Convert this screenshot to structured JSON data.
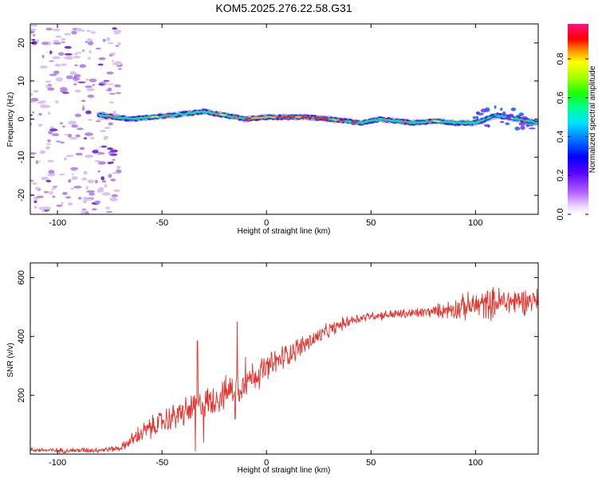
{
  "title": "KOM5.2025.276.22.58.G31",
  "colors": {
    "snr_line": "#e8302a",
    "noise": "#b58ae8",
    "noise_light": "#d9c2f4",
    "noise_dark": "#7a35d8"
  },
  "chart_data": [
    {
      "type": "heatmap",
      "xlabel": "Height of straight line (km)",
      "ylabel": "Frequency (Hz)",
      "xlim": [
        -113,
        130
      ],
      "ylim": [
        -25,
        25
      ],
      "xticks": [
        -100,
        -50,
        0,
        50,
        100
      ],
      "yticks": [
        -20,
        -10,
        0,
        10,
        20
      ],
      "ridge": {
        "start_km": -80,
        "end_km": 130,
        "center_freq": [
          [
            -80,
            1
          ],
          [
            -65,
            0
          ],
          [
            -45,
            1
          ],
          [
            -30,
            2
          ],
          [
            -20,
            1
          ],
          [
            -10,
            0
          ],
          [
            0,
            0.5
          ],
          [
            20,
            0.5
          ],
          [
            30,
            0
          ],
          [
            45,
            -1
          ],
          [
            55,
            0
          ],
          [
            70,
            -1
          ],
          [
            80,
            -0.5
          ],
          [
            90,
            -1
          ],
          [
            100,
            -1
          ],
          [
            105,
            0
          ],
          [
            110,
            1
          ],
          [
            120,
            0
          ],
          [
            130,
            -1
          ]
        ],
        "peak_amplitude_zone_km": [
          -10,
          45
        ]
      },
      "noise_region_km": [
        -113,
        -70
      ],
      "colorbar": {
        "label": "Normalized spectral amplitude",
        "ticks": [
          "0.0",
          "0.2",
          "0.4",
          "0.6",
          "0.8"
        ],
        "range": [
          0,
          0.98
        ]
      }
    },
    {
      "type": "line",
      "xlabel": "Height of straight line (km)",
      "ylabel": "SNR (v/v)",
      "xlim": [
        -113,
        130
      ],
      "ylim": [
        0,
        650
      ],
      "xticks": [
        -100,
        -50,
        0,
        50,
        100
      ],
      "yticks": [
        200,
        400,
        600
      ],
      "trend": [
        [
          -113,
          15
        ],
        [
          -100,
          12
        ],
        [
          -80,
          14
        ],
        [
          -70,
          20
        ],
        [
          -60,
          70
        ],
        [
          -50,
          110
        ],
        [
          -40,
          140
        ],
        [
          -30,
          170
        ],
        [
          -20,
          205
        ],
        [
          -10,
          250
        ],
        [
          0,
          290
        ],
        [
          10,
          340
        ],
        [
          20,
          380
        ],
        [
          30,
          420
        ],
        [
          40,
          455
        ],
        [
          50,
          470
        ],
        [
          60,
          475
        ],
        [
          70,
          478
        ],
        [
          80,
          485
        ],
        [
          90,
          495
        ],
        [
          100,
          505
        ],
        [
          110,
          515
        ],
        [
          120,
          520
        ],
        [
          130,
          525
        ]
      ],
      "spikes": [
        [
          -33,
          385
        ],
        [
          -34,
          10
        ],
        [
          -30,
          40
        ],
        [
          -14,
          450
        ],
        [
          -13,
          180
        ],
        [
          -15,
          120
        ],
        [
          -10,
          330
        ]
      ],
      "noise_amplitude": [
        [
          -113,
          8
        ],
        [
          -70,
          10
        ],
        [
          -60,
          35
        ],
        [
          -40,
          50
        ],
        [
          -20,
          55
        ],
        [
          0,
          50
        ],
        [
          30,
          25
        ],
        [
          50,
          15
        ],
        [
          80,
          20
        ],
        [
          95,
          45
        ],
        [
          110,
          55
        ],
        [
          130,
          40
        ]
      ]
    }
  ]
}
